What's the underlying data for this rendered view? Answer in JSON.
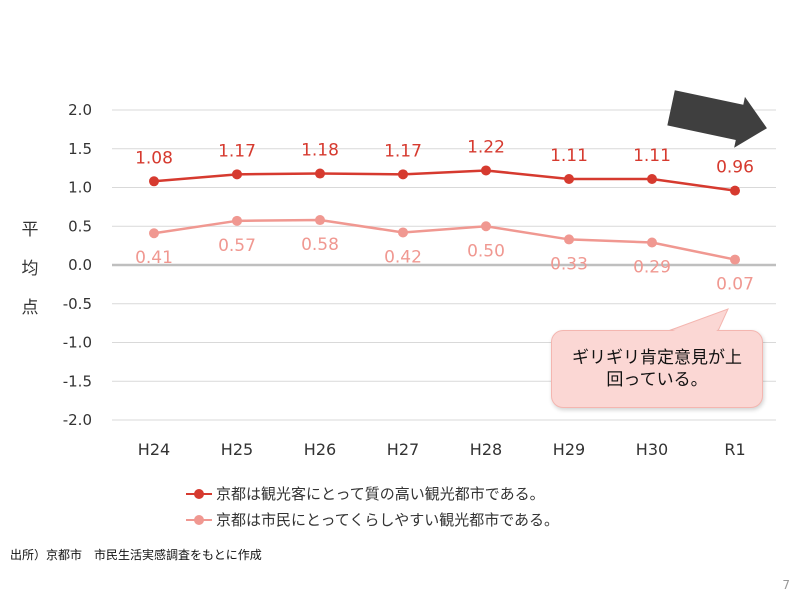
{
  "chart_data": {
    "type": "line",
    "categories": [
      "H24",
      "H25",
      "H26",
      "H27",
      "H28",
      "H29",
      "H30",
      "R1"
    ],
    "ylim": [
      -2.0,
      2.0
    ],
    "yticks": [
      "2.0",
      "1.5",
      "1.0",
      "0.5",
      "0.0",
      "-0.5",
      "-1.0",
      "-1.5",
      "-2.0"
    ],
    "ylabel": "平均点",
    "grid": true,
    "legend_position": "bottom",
    "series": [
      {
        "name": "京都は観光客にとって質の高い観光都市である。",
        "color": "#d63a2f",
        "values": [
          1.08,
          1.17,
          1.18,
          1.17,
          1.22,
          1.11,
          1.11,
          0.96
        ],
        "labels": [
          "1.08",
          "1.17",
          "1.18",
          "1.17",
          "1.22",
          "1.11",
          "1.11",
          "0.96"
        ]
      },
      {
        "name": "京都は市民にとってくらしやすい観光都市である。",
        "color": "#f09891",
        "values": [
          0.41,
          0.57,
          0.58,
          0.42,
          0.5,
          0.33,
          0.29,
          0.07
        ],
        "labels": [
          "0.41",
          "0.57",
          "0.58",
          "0.42",
          "0.50",
          "0.33",
          "0.29",
          "0.07"
        ]
      }
    ],
    "annotation": "ギリギリ肯定意見が上回っている。"
  },
  "source": "出所）京都市　市民生活実感調査をもとに作成",
  "page_number": "7",
  "colors": {
    "arrow": "#3f3f3f",
    "callout_bg": "#fbd7d4",
    "grid": "#d9d9d9",
    "zero_line": "#bfbfbf"
  }
}
